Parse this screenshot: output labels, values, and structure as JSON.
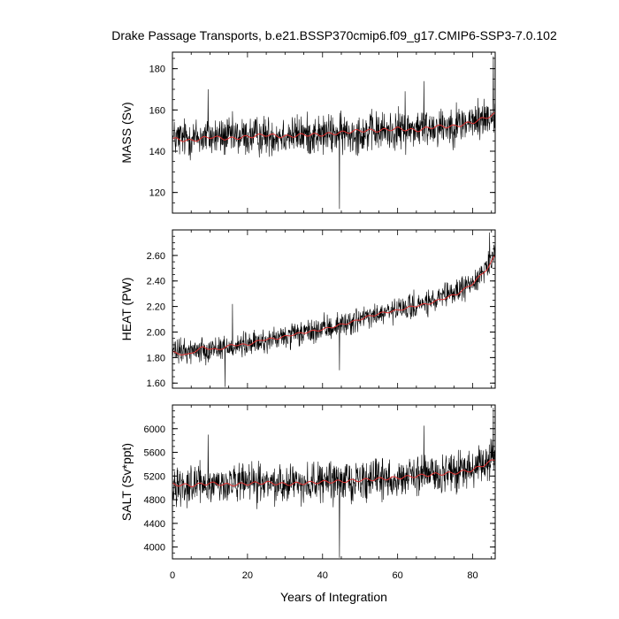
{
  "title": "Drake Passage Transports, b.e21.BSSP370cmip6.f09_g17.CMIP6-SSP3-7.0.102",
  "colors": {
    "raw_series": "#000000",
    "smoothed_series": "#e03030"
  },
  "chart_data": [
    {
      "type": "line",
      "ylabel": "MASS (Sv)",
      "xlim": [
        0,
        86
      ],
      "ylim": [
        110,
        188
      ],
      "yticks": [
        120,
        140,
        160,
        180
      ],
      "ytick_labels": [
        "120",
        "140",
        "160",
        "180"
      ],
      "xticks": [
        0,
        20,
        40,
        60,
        80
      ],
      "noise_amplitude": 9,
      "trend": [
        [
          0,
          146
        ],
        [
          10,
          147
        ],
        [
          20,
          147
        ],
        [
          30,
          148
        ],
        [
          40,
          148
        ],
        [
          50,
          149
        ],
        [
          60,
          150
        ],
        [
          70,
          152
        ],
        [
          80,
          154
        ],
        [
          86,
          158
        ]
      ],
      "smoothed": [
        [
          0,
          146
        ],
        [
          5,
          145
        ],
        [
          10,
          147
        ],
        [
          15,
          146
        ],
        [
          20,
          147
        ],
        [
          25,
          148
        ],
        [
          30,
          147
        ],
        [
          35,
          148
        ],
        [
          40,
          148
        ],
        [
          45,
          149
        ],
        [
          50,
          150
        ],
        [
          55,
          150
        ],
        [
          60,
          151
        ],
        [
          65,
          150
        ],
        [
          70,
          152
        ],
        [
          75,
          152
        ],
        [
          80,
          154
        ],
        [
          86,
          158
        ]
      ],
      "spikes": [
        [
          44.5,
          112
        ],
        [
          85.5,
          186
        ],
        [
          9.5,
          170
        ],
        [
          67,
          174
        ],
        [
          62,
          169
        ]
      ]
    },
    {
      "type": "line",
      "ylabel": "HEAT (PW)",
      "xlim": [
        0,
        86
      ],
      "ylim": [
        1.56,
        2.8
      ],
      "yticks": [
        1.6,
        1.8,
        2.0,
        2.2,
        2.4,
        2.6
      ],
      "ytick_labels": [
        "1.60",
        "1.80",
        "2.00",
        "2.20",
        "2.40",
        "2.60"
      ],
      "xticks": [
        0,
        20,
        40,
        60,
        80
      ],
      "noise_amplitude": 0.09,
      "trend": [
        [
          0,
          1.84
        ],
        [
          10,
          1.87
        ],
        [
          20,
          1.9
        ],
        [
          30,
          1.96
        ],
        [
          40,
          2.02
        ],
        [
          50,
          2.1
        ],
        [
          60,
          2.17
        ],
        [
          70,
          2.24
        ],
        [
          80,
          2.38
        ],
        [
          86,
          2.6
        ]
      ],
      "smoothed": [
        [
          0,
          1.84
        ],
        [
          4,
          1.82
        ],
        [
          8,
          1.88
        ],
        [
          12,
          1.86
        ],
        [
          16,
          1.9
        ],
        [
          20,
          1.9
        ],
        [
          24,
          1.94
        ],
        [
          28,
          1.95
        ],
        [
          32,
          1.98
        ],
        [
          36,
          2.0
        ],
        [
          40,
          2.02
        ],
        [
          44,
          2.05
        ],
        [
          48,
          2.08
        ],
        [
          52,
          2.12
        ],
        [
          56,
          2.15
        ],
        [
          60,
          2.17
        ],
        [
          64,
          2.2
        ],
        [
          68,
          2.22
        ],
        [
          72,
          2.26
        ],
        [
          76,
          2.3
        ],
        [
          80,
          2.38
        ],
        [
          84,
          2.5
        ],
        [
          86,
          2.6
        ]
      ],
      "spikes": [
        [
          44.5,
          1.7
        ],
        [
          84.5,
          2.78
        ],
        [
          14,
          1.57
        ],
        [
          16,
          2.22
        ]
      ]
    },
    {
      "type": "line",
      "ylabel": "SALT (Sv*ppt)",
      "xlabel": "Years of Integration",
      "xlim": [
        0,
        86
      ],
      "ylim": [
        3800,
        6400
      ],
      "yticks": [
        4000,
        4400,
        4800,
        5200,
        5600,
        6000
      ],
      "ytick_labels": [
        "4000",
        "4400",
        "4800",
        "5200",
        "5600",
        "6000"
      ],
      "xticks": [
        0,
        20,
        40,
        60,
        80
      ],
      "xtick_labels": [
        "0",
        "20",
        "40",
        "60",
        "80"
      ],
      "noise_amplitude": 300,
      "trend": [
        [
          0,
          5060
        ],
        [
          10,
          5060
        ],
        [
          20,
          5070
        ],
        [
          30,
          5080
        ],
        [
          40,
          5100
        ],
        [
          50,
          5130
        ],
        [
          60,
          5170
        ],
        [
          70,
          5230
        ],
        [
          80,
          5300
        ],
        [
          86,
          5480
        ]
      ],
      "smoothed": [
        [
          0,
          5060
        ],
        [
          5,
          5040
        ],
        [
          10,
          5080
        ],
        [
          15,
          5050
        ],
        [
          20,
          5070
        ],
        [
          25,
          5090
        ],
        [
          30,
          5060
        ],
        [
          35,
          5080
        ],
        [
          40,
          5100
        ],
        [
          45,
          5110
        ],
        [
          50,
          5130
        ],
        [
          55,
          5150
        ],
        [
          60,
          5170
        ],
        [
          65,
          5200
        ],
        [
          70,
          5230
        ],
        [
          75,
          5250
        ],
        [
          80,
          5300
        ],
        [
          86,
          5480
        ]
      ],
      "spikes": [
        [
          44.5,
          3820
        ],
        [
          85.5,
          6350
        ],
        [
          67,
          6050
        ],
        [
          9.5,
          5900
        ]
      ]
    }
  ]
}
